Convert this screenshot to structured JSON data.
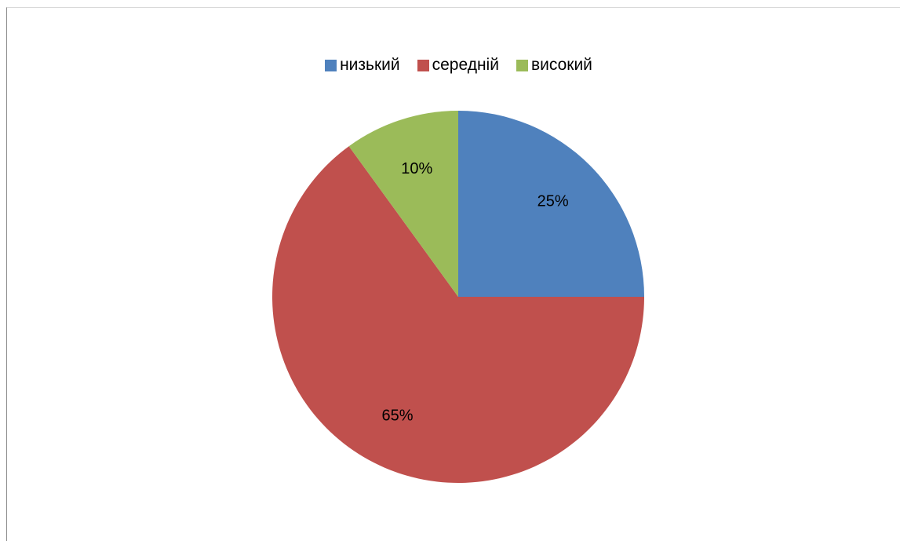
{
  "chart_data": {
    "type": "pie",
    "categories": [
      "низький",
      "середній",
      "високий"
    ],
    "values": [
      25,
      65,
      10
    ],
    "labels": [
      "25%",
      "65%",
      "10%"
    ],
    "colors": [
      "#4F81BD",
      "#C0504D",
      "#9BBB59"
    ],
    "legend_position": "top"
  }
}
